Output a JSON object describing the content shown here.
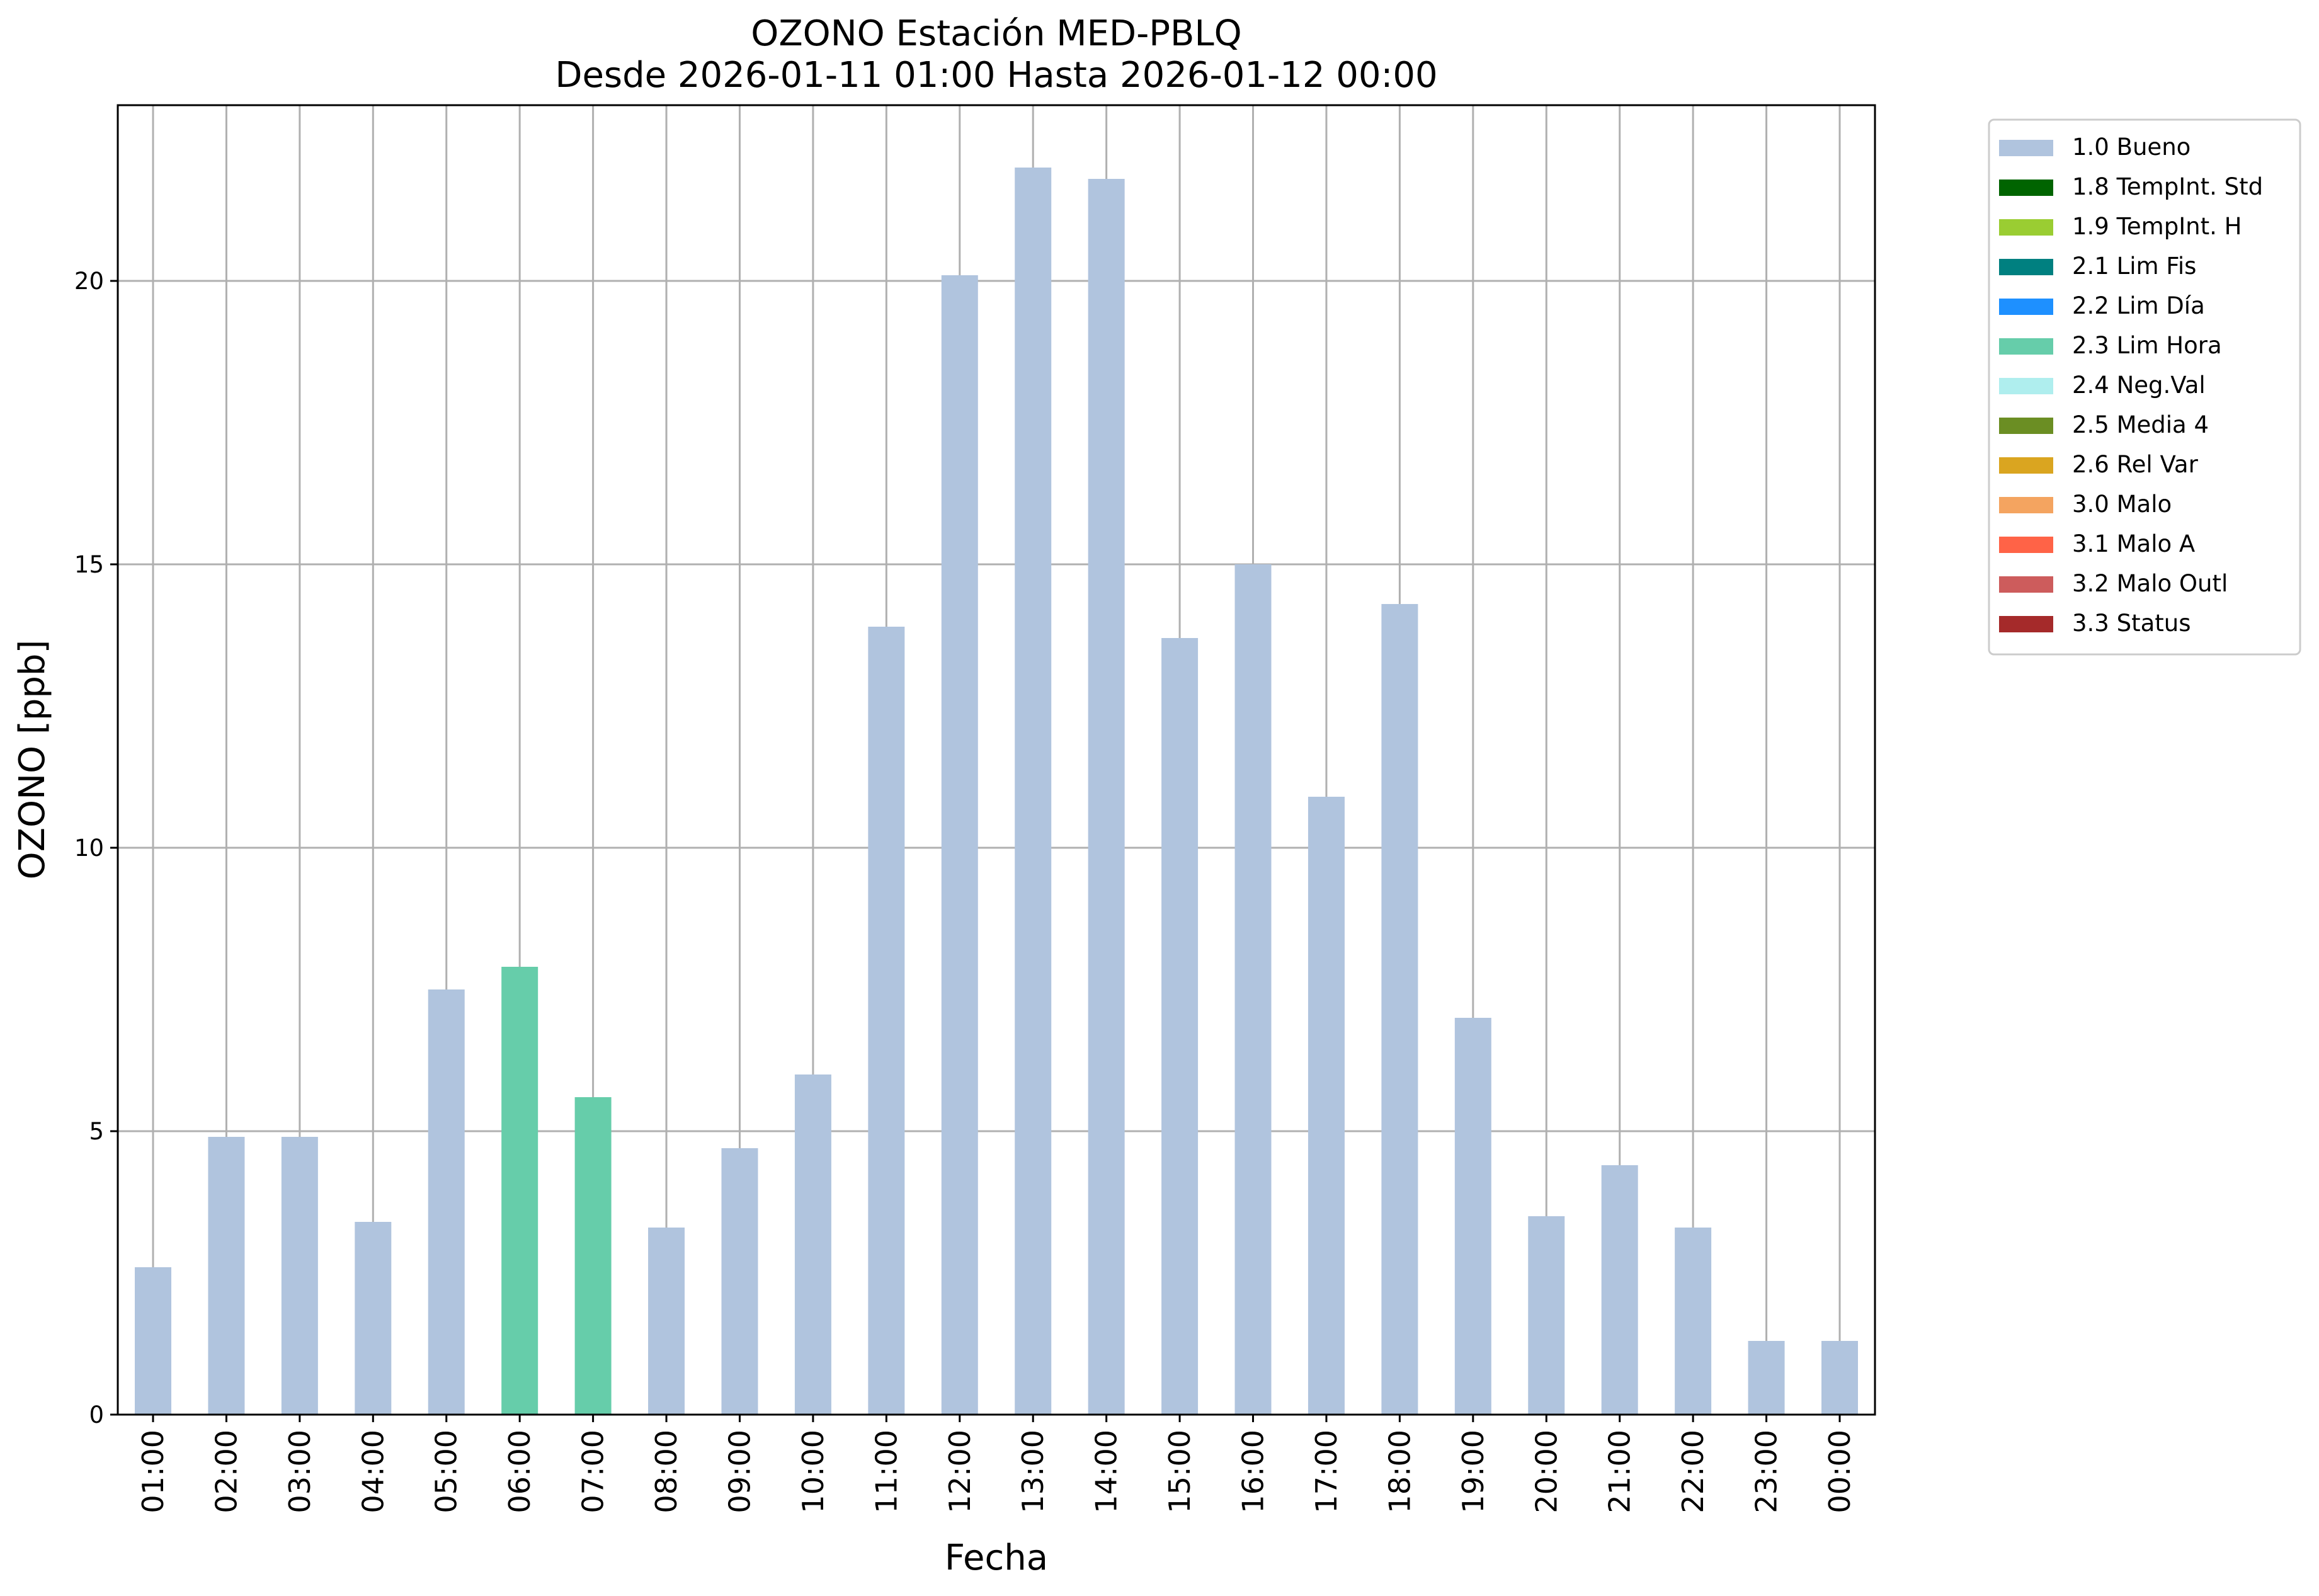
{
  "chart_data": {
    "type": "bar",
    "title": "OZONO Estación MED-PBLQ",
    "subtitle": "Desde 2026-01-11 01:00 Hasta 2026-01-12 00:00",
    "xlabel": "Fecha",
    "ylabel": "OZONO [ppb]",
    "ylim": [
      0,
      23.1
    ],
    "yticks": [
      "0",
      "5",
      "10",
      "15",
      "20"
    ],
    "grid": true,
    "legend_position": "outside top-right",
    "categories": [
      "01:00",
      "02:00",
      "03:00",
      "04:00",
      "05:00",
      "06:00",
      "07:00",
      "08:00",
      "09:00",
      "10:00",
      "11:00",
      "12:00",
      "13:00",
      "14:00",
      "15:00",
      "16:00",
      "17:00",
      "18:00",
      "19:00",
      "20:00",
      "21:00",
      "22:00",
      "23:00",
      "00:00"
    ],
    "values": [
      2.6,
      4.9,
      4.9,
      3.4,
      7.5,
      7.9,
      5.6,
      3.3,
      4.7,
      6.0,
      13.9,
      20.1,
      22.0,
      21.8,
      13.7,
      15.0,
      10.9,
      14.3,
      7.0,
      3.5,
      4.4,
      3.3,
      1.3,
      1.3
    ],
    "flags": [
      "1.0 Bueno",
      "1.0 Bueno",
      "1.0 Bueno",
      "1.0 Bueno",
      "1.0 Bueno",
      "2.3 Lim Hora",
      "2.3 Lim Hora",
      "1.0 Bueno",
      "1.0 Bueno",
      "1.0 Bueno",
      "1.0 Bueno",
      "1.0 Bueno",
      "1.0 Bueno",
      "1.0 Bueno",
      "1.0 Bueno",
      "1.0 Bueno",
      "1.0 Bueno",
      "1.0 Bueno",
      "1.0 Bueno",
      "1.0 Bueno",
      "1.0 Bueno",
      "1.0 Bueno",
      "1.0 Bueno",
      "1.0 Bueno"
    ],
    "legend": [
      {
        "label": "1.0 Bueno",
        "color": "#b0c4de"
      },
      {
        "label": "1.8 TempInt. Std",
        "color": "#006400"
      },
      {
        "label": "1.9 TempInt. H",
        "color": "#9acd32"
      },
      {
        "label": "2.1 Lim Fis",
        "color": "#008080"
      },
      {
        "label": "2.2 Lim Día",
        "color": "#1e90ff"
      },
      {
        "label": "2.3 Lim Hora",
        "color": "#66cdaa"
      },
      {
        "label": "2.4 Neg.Val",
        "color": "#afeeee"
      },
      {
        "label": "2.5 Media 4",
        "color": "#6b8e23"
      },
      {
        "label": "2.6 Rel Var",
        "color": "#daa520"
      },
      {
        "label": "3.0 Malo",
        "color": "#f4a460"
      },
      {
        "label": "3.1 Malo A",
        "color": "#ff6347"
      },
      {
        "label": "3.2 Malo Outl",
        "color": "#cd5c5c"
      },
      {
        "label": "3.3 Status",
        "color": "#a52a2a"
      }
    ]
  }
}
